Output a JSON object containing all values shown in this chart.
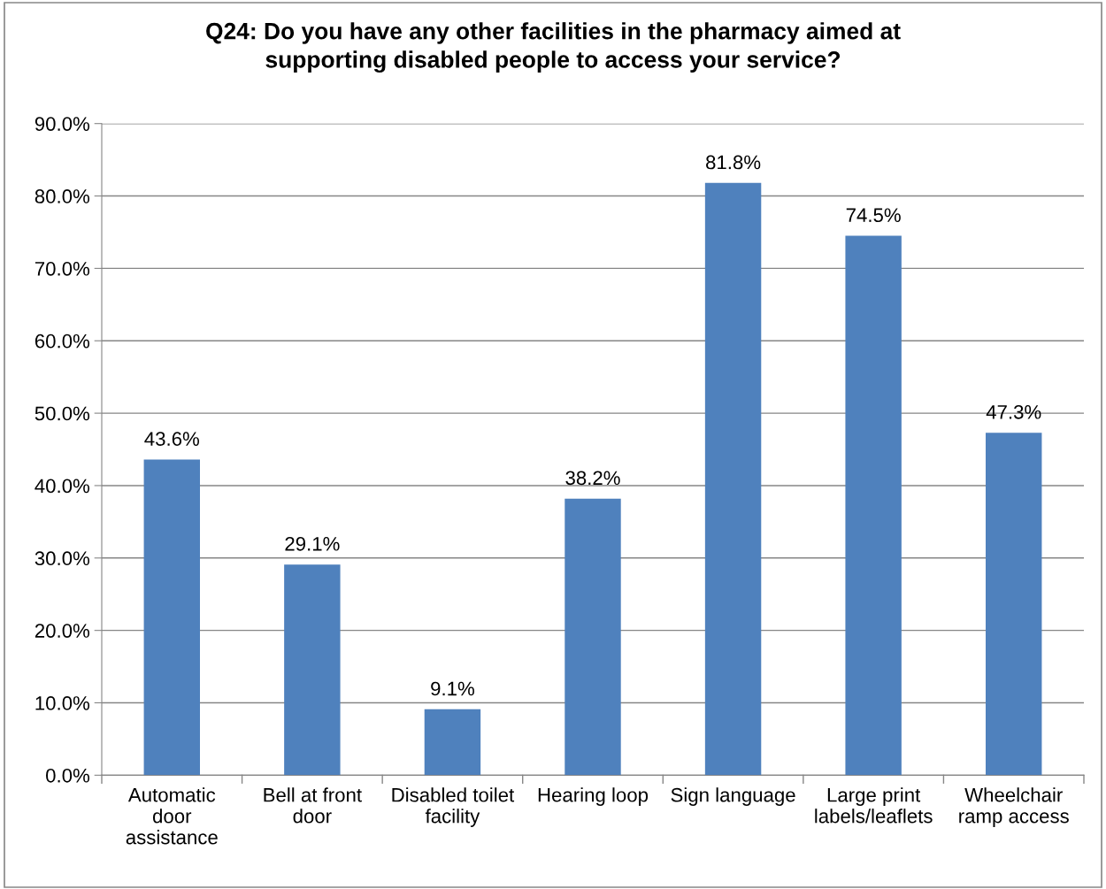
{
  "chart_data": {
    "type": "bar",
    "title": "Q24: Do you have any other facilities in the pharmacy aimed at\nsupporting disabled people to access your service?",
    "categories": [
      "Automatic\ndoor\nassistance",
      "Bell at front\ndoor",
      "Disabled toilet\nfacility",
      "Hearing loop",
      "Sign language",
      "Large print\nlabels/leaflets",
      "Wheelchair\nramp access"
    ],
    "values": [
      43.6,
      29.1,
      9.1,
      38.2,
      81.8,
      74.5,
      47.3
    ],
    "value_labels": [
      "43.6%",
      "29.1%",
      "9.1%",
      "38.2%",
      "81.8%",
      "74.5%",
      "47.3%"
    ],
    "color": "#4f81bd",
    "ylim": [
      0,
      90
    ],
    "yticks": [
      {
        "value": 0,
        "label": "0.0%"
      },
      {
        "value": 10,
        "label": "10.0%"
      },
      {
        "value": 20,
        "label": "20.0%"
      },
      {
        "value": 30,
        "label": "30.0%"
      },
      {
        "value": 40,
        "label": "40.0%"
      },
      {
        "value": 50,
        "label": "50.0%"
      },
      {
        "value": 60,
        "label": "60.0%"
      },
      {
        "value": 70,
        "label": "70.0%"
      },
      {
        "value": 80,
        "label": "80.0%"
      },
      {
        "value": 90,
        "label": "90.0%"
      }
    ],
    "grid": "y",
    "legend": false
  }
}
